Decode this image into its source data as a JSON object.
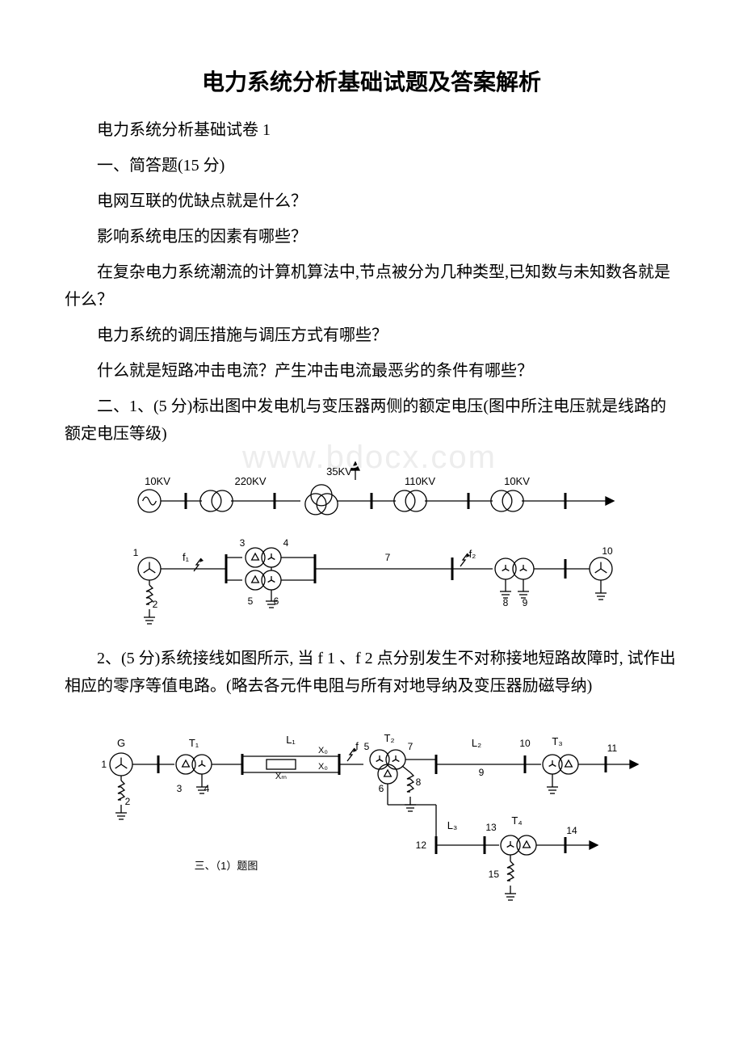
{
  "title": "电力系统分析基础试题及答案解析",
  "subtitle": "电力系统分析基础试卷 1",
  "section1_heading": "一、简答题(15 分)",
  "q1": "电网互联的优缺点就是什么？",
  "q2": "影响系统电压的因素有哪些？",
  "q3": "在复杂电力系统潮流的计算机算法中,节点被分为几种类型,已知数与未知数各就是什么？",
  "q4": "电力系统的调压措施与调压方式有哪些？",
  "q5": "什么就是短路冲击电流？产生冲击电流最恶劣的条件有哪些？",
  "section2_q1": "二、1、(5 分)标出图中发电机与变压器两侧的额定电压(图中所注电压就是线路的额定电压等级)",
  "section2_q2": "2、(5 分)系统接线如图所示, 当 f 1 、f 2 点分别发生不对称接地短路故障时, 试作出相应的零序等值电路。(略去各元件电阻与所有对地导纳及变压器励磁导纳)",
  "watermark": "www.bdocx.com",
  "diagram1": {
    "labels": {
      "top_voltage": "35KV",
      "v1": "10KV",
      "v2": "220KV",
      "v3": "110KV",
      "v4": "10KV",
      "n1": "1",
      "n2": "2",
      "n3": "3",
      "n4": "4",
      "n5": "5",
      "n6": "6",
      "n7": "7",
      "n8": "8",
      "n9": "9",
      "n10": "10",
      "f1": "f₁",
      "f2": "f₂"
    },
    "colors": {
      "stroke": "#000000",
      "bg": "#ffffff"
    },
    "line_width": 1.3
  },
  "diagram2": {
    "labels": {
      "G": "G",
      "T1": "T₁",
      "T2": "T₂",
      "T3": "T₃",
      "T4": "T₄",
      "L1": "L₁",
      "L2": "L₂",
      "L3": "L₃",
      "X0a": "X₀",
      "X0b": "X₀",
      "Xm": "Xₘ",
      "f": "f",
      "n1": "1",
      "n2": "2",
      "n3": "3",
      "n4": "4",
      "n5": "5",
      "n6": "6",
      "n7": "7",
      "n8": "8",
      "n9": "9",
      "n10": "10",
      "n11": "11",
      "n12": "12",
      "n13": "13",
      "n14": "14",
      "n15": "15",
      "caption": "三、（1）题图"
    },
    "colors": {
      "stroke": "#000000",
      "bg": "#ffffff"
    },
    "line_width": 1.3
  }
}
